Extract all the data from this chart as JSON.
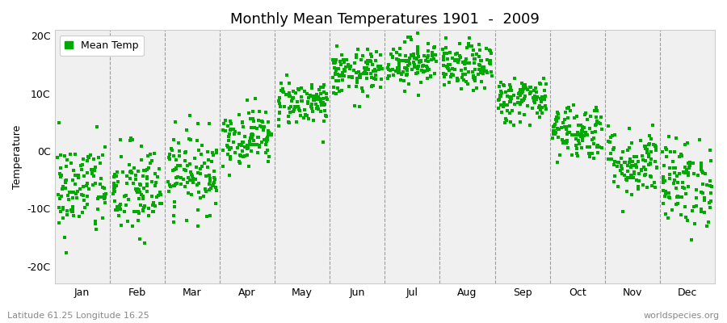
{
  "title": "Monthly Mean Temperatures 1901  -  2009",
  "ylabel": "Temperature",
  "yticks": [
    -20,
    -10,
    0,
    10,
    20
  ],
  "ytick_labels": [
    "-20C",
    "-10C",
    "0C",
    "10C",
    "20C"
  ],
  "ylim": [
    -23,
    21
  ],
  "months": [
    "Jan",
    "Feb",
    "Mar",
    "Apr",
    "May",
    "Jun",
    "Jul",
    "Aug",
    "Sep",
    "Oct",
    "Nov",
    "Dec"
  ],
  "dot_color": "#00aa00",
  "dot_size": 6,
  "background_color": "#ffffff",
  "plot_bg_color": "#f0f0f0",
  "title_fontsize": 13,
  "axis_fontsize": 9,
  "tick_fontsize": 9,
  "legend_label": "Mean Temp",
  "subtitle_left": "Latitude 61.25 Longitude 16.25",
  "subtitle_right": "worldspecies.org",
  "n_years": 109,
  "monthly_means": [
    -6.5,
    -7.0,
    -3.5,
    2.5,
    8.5,
    13.5,
    15.5,
    14.5,
    9.0,
    3.5,
    -2.0,
    -5.5
  ],
  "monthly_stds": [
    4.2,
    4.2,
    3.5,
    2.5,
    2.0,
    2.0,
    2.0,
    2.0,
    2.0,
    2.5,
    3.0,
    3.8
  ],
  "seed": 42
}
